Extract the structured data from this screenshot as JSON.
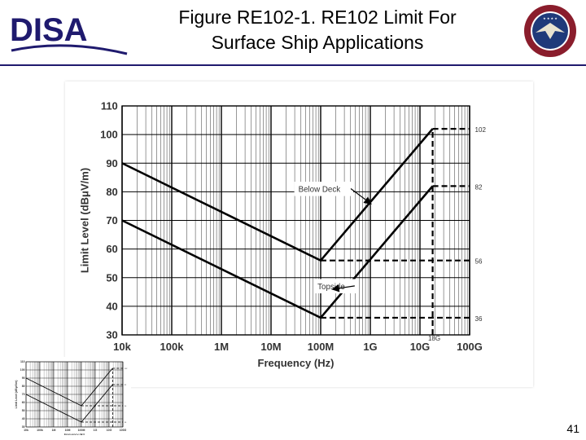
{
  "slide": {
    "title_line1": "Figure RE102-1. RE102 Limit For",
    "title_line2": "Surface Ship Applications",
    "logo_text": "DISA",
    "seal_text": "DEFENSE INFORMATION SYSTEMS AGENCY",
    "page_number": "41"
  },
  "colors": {
    "header_rule": "#1f1a6e",
    "logo": "#1f1a6e",
    "seal_ring": "#8a1d2c",
    "line": "#000000",
    "grid": "#000000"
  },
  "chart_data": {
    "type": "line",
    "xlabel": "Frequency (Hz)",
    "ylabel": "Limit Level (dBμV/m)",
    "x_scale": "log",
    "xlim": [
      10000,
      100000000000
    ],
    "ylim": [
      30,
      110
    ],
    "xticks": [
      10000,
      100000,
      1000000,
      10000000,
      100000000,
      1000000000,
      10000000000,
      100000000000
    ],
    "xtick_labels": [
      "10k",
      "100k",
      "1M",
      "10M",
      "100M",
      "1G",
      "10G",
      "100G"
    ],
    "yticks": [
      30,
      40,
      50,
      60,
      70,
      80,
      90,
      100,
      110
    ],
    "ytick_labels": [
      "30",
      "40",
      "50",
      "60",
      "70",
      "80",
      "90",
      "100",
      "110"
    ],
    "grid": true,
    "series": [
      {
        "name": "Below Deck",
        "x": [
          10000,
          100000000,
          18000000000
        ],
        "y": [
          90,
          56,
          102
        ],
        "style": "solid"
      },
      {
        "name": "Topside",
        "x": [
          10000,
          100000000,
          18000000000
        ],
        "y": [
          70,
          36,
          82
        ],
        "style": "solid"
      }
    ],
    "dashed_extensions": [
      {
        "x": [
          100000000,
          100000000000
        ],
        "y": [
          56,
          56
        ]
      },
      {
        "x": [
          100000000,
          100000000000
        ],
        "y": [
          36,
          36
        ]
      },
      {
        "x": [
          18000000000,
          100000000000
        ],
        "y": [
          102,
          102
        ]
      },
      {
        "x": [
          18000000000,
          100000000000
        ],
        "y": [
          82,
          82
        ]
      },
      {
        "x": [
          18000000000,
          18000000000
        ],
        "y": [
          30,
          102
        ]
      }
    ],
    "right_labels": [
      {
        "y": 102,
        "text": "102"
      },
      {
        "y": 82,
        "text": "82"
      },
      {
        "y": 56,
        "text": "56"
      },
      {
        "y": 36,
        "text": "36"
      }
    ],
    "marker_18g": {
      "x": 18000000000,
      "text": "18G"
    },
    "annotations": [
      {
        "text": "Below Deck",
        "x": 100000000,
        "y": 80,
        "arrow_to": {
          "x": 1000000000,
          "y": 76
        }
      },
      {
        "text": "Topside",
        "x": 120000000,
        "y": 46,
        "arrow_to": {
          "x": 180000000,
          "y": 46
        }
      }
    ]
  }
}
